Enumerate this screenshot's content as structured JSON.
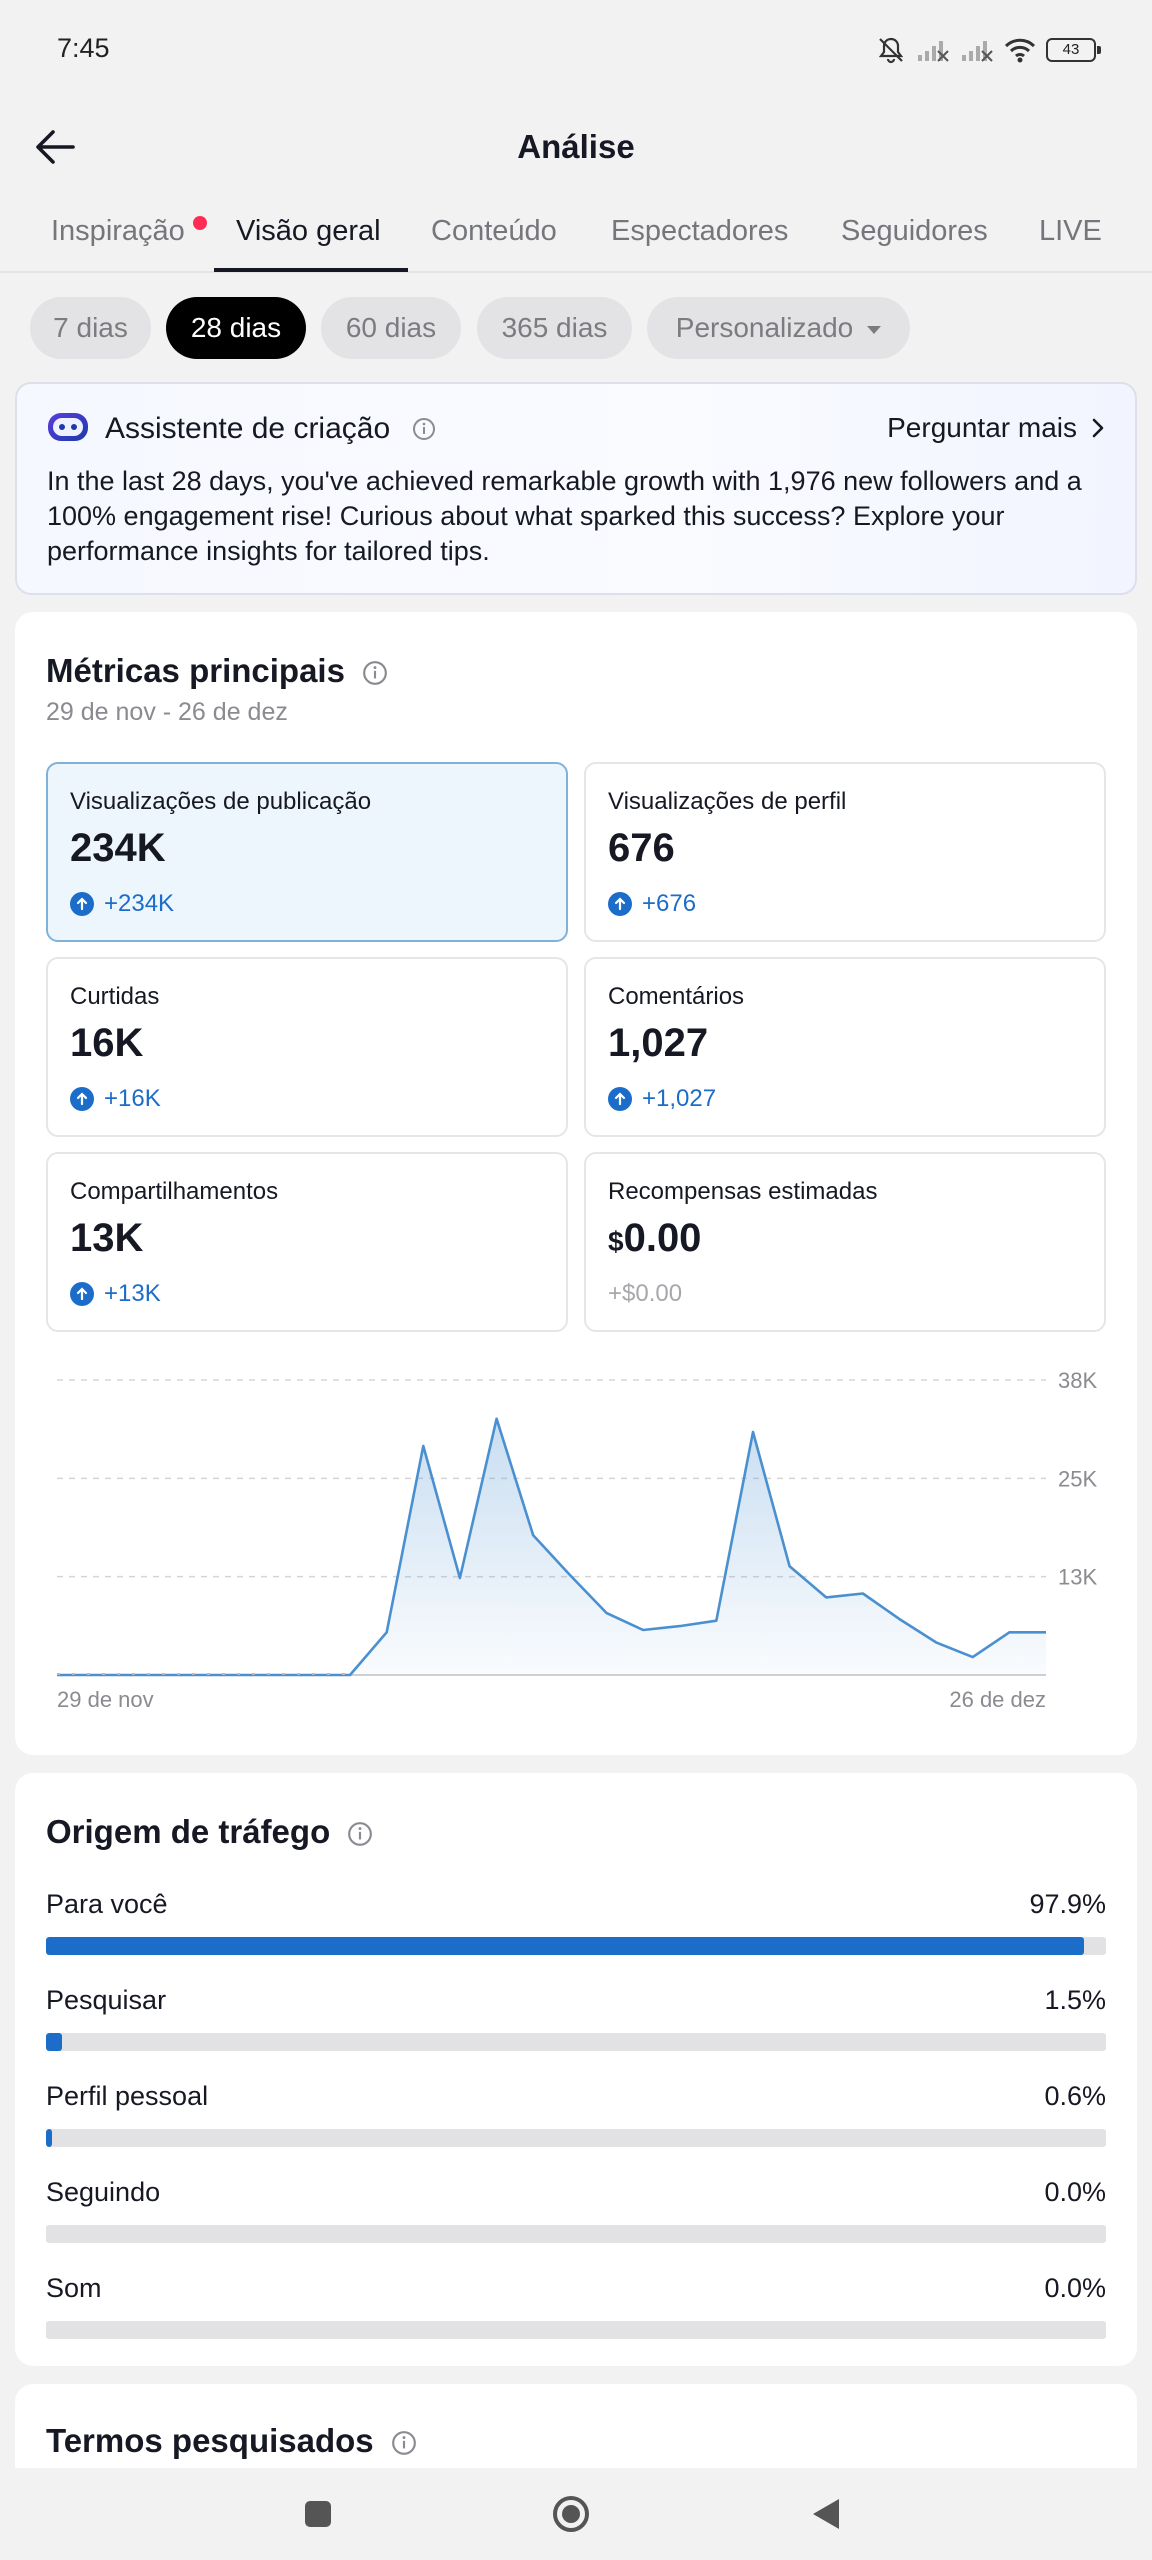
{
  "status_bar": {
    "time": "7:45",
    "battery": "43"
  },
  "header": {
    "title": "Análise"
  },
  "tabs": [
    {
      "label": "Inspiração"
    },
    {
      "label": "Visão geral"
    },
    {
      "label": "Conteúdo"
    },
    {
      "label": "Espectadores"
    },
    {
      "label": "Seguidores"
    },
    {
      "label": "LIVE"
    }
  ],
  "ranges": [
    "7 dias",
    "28 dias",
    "60 dias",
    "365 dias",
    "Personalizado"
  ],
  "assistant": {
    "title": "Assistente de criação",
    "more": "Perguntar mais",
    "text": "In the last 28 days, you've achieved remarkable growth with 1,976 new followers and a 100% engagement rise! Curious about what sparked this success? Explore your performance insights for tailored tips."
  },
  "metrics": {
    "title": "Métricas principais",
    "date_range": "29 de nov - 26 de dez",
    "items": [
      {
        "label": "Visualizações de publicação",
        "value": "234K",
        "delta": "+234K"
      },
      {
        "label": "Visualizações de perfil",
        "value": "676",
        "delta": "+676"
      },
      {
        "label": "Curtidas",
        "value": "16K",
        "delta": "+16K"
      },
      {
        "label": "Comentários",
        "value": "1,027",
        "delta": "+1,027"
      },
      {
        "label": "Compartilhamentos",
        "value": "13K",
        "delta": "+13K"
      },
      {
        "label": "Recompensas estimadas",
        "currency": "$",
        "value": "0.00",
        "delta": "+$0.00"
      }
    ]
  },
  "chart_data": {
    "type": "area",
    "x_start_label": "29 de nov",
    "x_end_label": "26 de dez",
    "y_ticks": [
      "13K",
      "25K",
      "38K"
    ],
    "y_tick_values": [
      12667,
      25333,
      38000
    ],
    "ylim": [
      0,
      38000
    ],
    "grid": true,
    "values": [
      0,
      0,
      0,
      0,
      0,
      0,
      0,
      0,
      0,
      5500,
      29500,
      12500,
      33000,
      18000,
      12900,
      8000,
      5800,
      6300,
      7000,
      31300,
      14000,
      10000,
      10500,
      7200,
      4200,
      2300,
      5500,
      5500
    ],
    "color": "#4a90d0"
  },
  "traffic": {
    "title": "Origem de tráfego",
    "items": [
      {
        "name": "Para você",
        "pct": "97.9%",
        "value": 97.9
      },
      {
        "name": "Pesquisar",
        "pct": "1.5%",
        "value": 1.5
      },
      {
        "name": "Perfil pessoal",
        "pct": "0.6%",
        "value": 0.6
      },
      {
        "name": "Seguindo",
        "pct": "0.0%",
        "value": 0.0
      },
      {
        "name": "Som",
        "pct": "0.0%",
        "value": 0.0
      }
    ]
  },
  "search_terms": {
    "title": "Termos pesquisados"
  },
  "colors": {
    "accent": "#1c6dc9",
    "notification": "#fe2c55",
    "chart_line": "#4a90d0"
  }
}
